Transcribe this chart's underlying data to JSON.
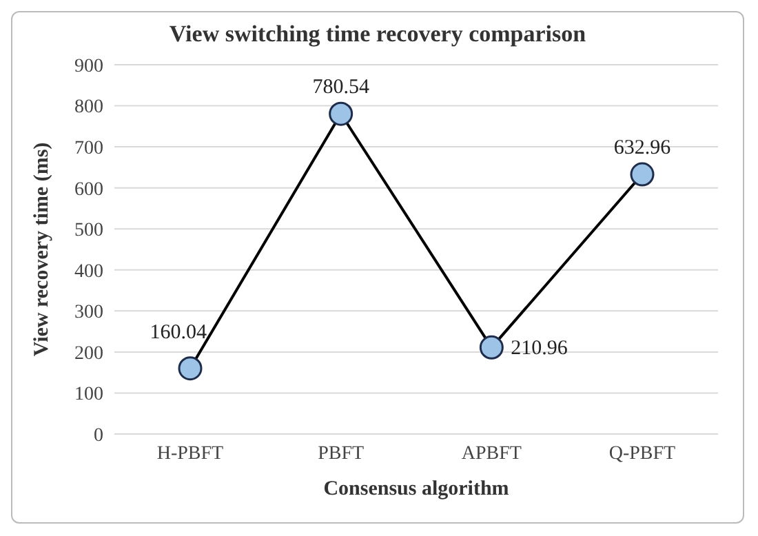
{
  "chart_data": {
    "type": "line",
    "title": "View switching time recovery comparison",
    "xlabel": "Consensus algorithm",
    "ylabel": "View recovery time (ms)",
    "categories": [
      "H-PBFT",
      "PBFT",
      "APBFT",
      "Q-PBFT"
    ],
    "series": [
      {
        "color": "#000000",
        "values": [
          160.04,
          780.54,
          210.96,
          632.96
        ]
      }
    ],
    "marker": "circle",
    "line_style": "solid",
    "data_labels": true,
    "grid": "y",
    "ylim": [
      0,
      900
    ],
    "yticks": [
      0,
      100,
      200,
      300,
      400,
      500,
      600,
      700,
      800,
      900
    ]
  }
}
